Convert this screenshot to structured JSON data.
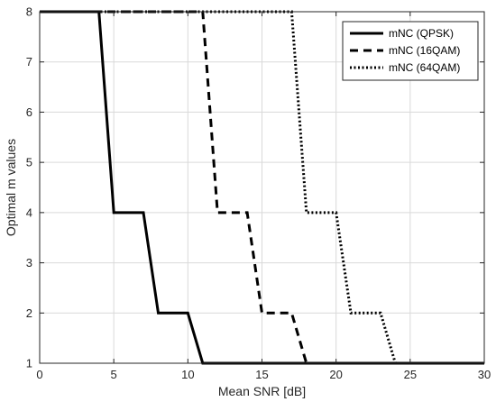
{
  "chart_data": {
    "type": "line",
    "xlabel": "Mean SNR [dB]",
    "ylabel": "Optimal m values",
    "xlim": [
      0,
      30
    ],
    "ylim": [
      1,
      8
    ],
    "xticks": [
      0,
      5,
      10,
      15,
      20,
      25,
      30
    ],
    "yticks": [
      1,
      2,
      3,
      4,
      5,
      6,
      7,
      8
    ],
    "grid": true,
    "legend_position": "top-right",
    "line_color": "#000000",
    "series": [
      {
        "name": "mNC (QPSK)",
        "style": "solid",
        "x": [
          0,
          4,
          5,
          7,
          8,
          10,
          11,
          30
        ],
        "y": [
          8,
          8,
          4,
          4,
          2,
          2,
          1,
          1
        ]
      },
      {
        "name": "mNC (16QAM)",
        "style": "dashed",
        "x": [
          0,
          11,
          12,
          14,
          15,
          17,
          18,
          30
        ],
        "y": [
          8,
          8,
          4,
          4,
          2,
          2,
          1,
          1
        ]
      },
      {
        "name": "mNC (64QAM)",
        "style": "dotted",
        "x": [
          0,
          17,
          18,
          20,
          21,
          23,
          24,
          30
        ],
        "y": [
          8,
          8,
          4,
          4,
          2,
          2,
          1,
          1
        ]
      }
    ]
  }
}
